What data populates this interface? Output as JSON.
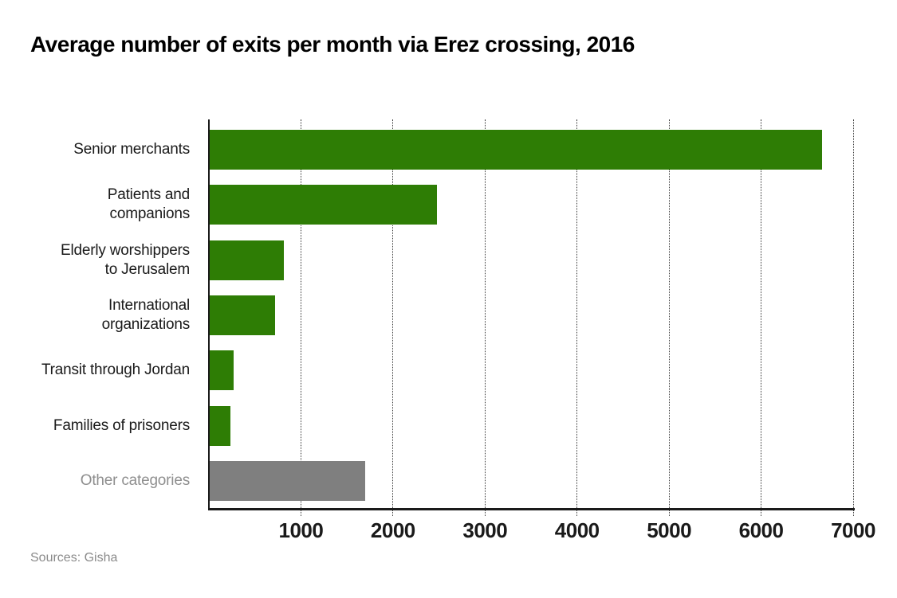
{
  "page": {
    "title": "Average number of exits per month via Erez crossing, 2016",
    "source_note": "Sources: Gisha"
  },
  "colors": {
    "bar_green": "#2e7d05",
    "bar_gray": "#7f7f7f",
    "text": "#1a1a1a",
    "muted_text": "#8f8f8f",
    "axis": "#1a1a1a"
  },
  "chart_data": {
    "type": "bar",
    "orientation": "horizontal",
    "title": "Average number of exits per month via Erez crossing, 2016",
    "categories": [
      "Senior merchants",
      "Patients and companions",
      "Elderly worshippers to Jerusalem",
      "International organizations",
      "Transit through Jordan",
      "Families of prisoners",
      "Other categories"
    ],
    "label_lines": [
      [
        "Senior merchants"
      ],
      [
        "Patients and",
        "companions"
      ],
      [
        "Elderly worshippers",
        "to Jerusalem"
      ],
      [
        "International",
        "organizations"
      ],
      [
        "Transit through Jordan"
      ],
      [
        "Families of prisoners"
      ],
      [
        "Other categories"
      ]
    ],
    "values": [
      6650,
      2470,
      810,
      710,
      260,
      225,
      1690
    ],
    "bar_colors": [
      "green",
      "green",
      "green",
      "green",
      "green",
      "green",
      "gray"
    ],
    "xlim": [
      0,
      7000
    ],
    "x_ticks": [
      "1000",
      "2000",
      "3000",
      "4000",
      "5000",
      "6000",
      "7000"
    ],
    "grid": "vertical dotted",
    "legend": "none",
    "xlabel": "",
    "ylabel": "",
    "source": "Sources: Gisha"
  }
}
